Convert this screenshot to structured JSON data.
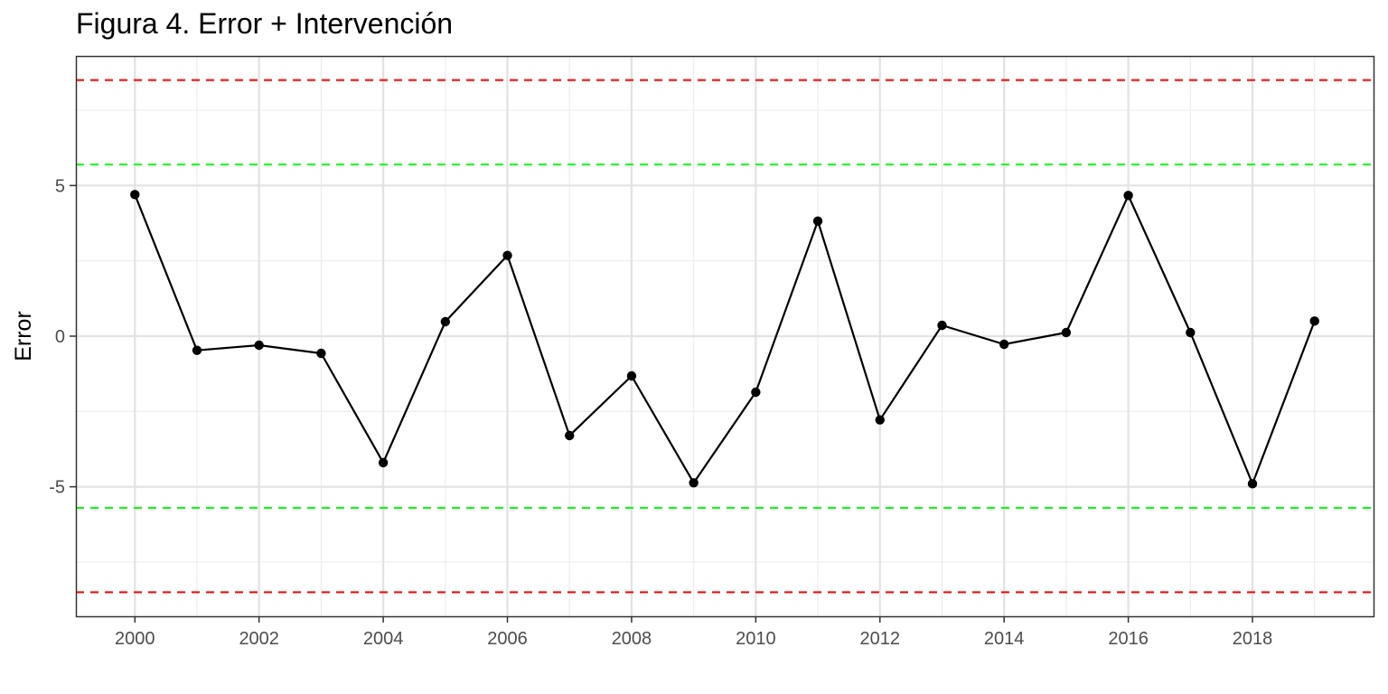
{
  "chart_data": {
    "type": "line",
    "title": "Figura 4. Error + Intervención",
    "xlabel": "",
    "ylabel": "Error",
    "x": [
      2000,
      2001,
      2002,
      2003,
      2004,
      2005,
      2006,
      2007,
      2008,
      2009,
      2010,
      2011,
      2012,
      2013,
      2014,
      2015,
      2016,
      2017,
      2018,
      2019
    ],
    "series": [
      {
        "values": [
          4.7,
          -0.47,
          -0.3,
          -0.57,
          -4.2,
          0.48,
          2.68,
          -3.3,
          -1.32,
          -4.87,
          -1.86,
          3.82,
          -2.78,
          0.36,
          -0.27,
          0.12,
          4.67,
          0.12,
          -4.9,
          0.5
        ],
        "color": "#000000"
      }
    ],
    "reference_lines": [
      {
        "y": 8.5,
        "color": "#ff0000",
        "style": "dashed"
      },
      {
        "y": 5.7,
        "color": "#00ff00",
        "style": "dashed"
      },
      {
        "y": -5.7,
        "color": "#00ff00",
        "style": "dashed"
      },
      {
        "y": -8.5,
        "color": "#ff0000",
        "style": "dashed"
      }
    ],
    "xticks": [
      "2000",
      "2002",
      "2004",
      "2006",
      "2008",
      "2010",
      "2012",
      "2014",
      "2016",
      "2018"
    ],
    "yticks": [
      "-5",
      "0",
      "5"
    ],
    "xlim": [
      1999.05,
      2019.95
    ],
    "ylim": [
      -9.3,
      9.3
    ],
    "grid": true,
    "legend": "none"
  }
}
